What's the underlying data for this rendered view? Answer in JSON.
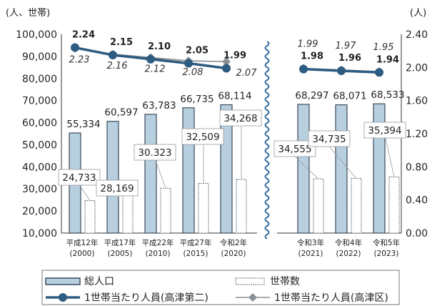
{
  "chart_data": {
    "type": "bar",
    "left_axis_unit": "(人、世帯)",
    "right_axis_unit": "(人)",
    "left_ticks": [
      "100,000",
      "90,000",
      "80,000",
      "70,000",
      "60,000",
      "50,000",
      "40,000",
      "30,000",
      "20,000",
      "10,000"
    ],
    "right_ticks": [
      "2.40",
      "2.00",
      "1.60",
      "1.20",
      "0.80",
      "0.40",
      "0.00"
    ],
    "ylim": [
      10000,
      100000
    ],
    "y2lim": [
      0,
      2.4
    ],
    "categories": [
      {
        "era": "平成12年",
        "year": "(2000)"
      },
      {
        "era": "平成17年",
        "year": "(2005)"
      },
      {
        "era": "平成22年",
        "year": "(2010)"
      },
      {
        "era": "平成27年",
        "year": "(2015)"
      },
      {
        "era": "令和2年",
        "year": "(2020)"
      },
      {
        "era": "令和3年",
        "year": "(2021)"
      },
      {
        "era": "令和4年",
        "year": "(2022)"
      },
      {
        "era": "令和5年",
        "year": "(2023)"
      }
    ],
    "series": [
      {
        "name": "総人口",
        "values": [
          55334,
          60597,
          63783,
          66735,
          68114,
          68297,
          68071,
          68533
        ],
        "labels": [
          "55,334",
          "60,597",
          "63,783",
          "66,735",
          "68,114",
          "68,297",
          "68,071",
          "68,533"
        ]
      },
      {
        "name": "世帯数",
        "values": [
          24733,
          28169,
          30323,
          32509,
          34268,
          34555,
          34735,
          35394
        ],
        "labels": [
          "24,733",
          "28,169",
          "30.323",
          "32,509",
          "34,268",
          "34,555",
          "34,735",
          "35,394"
        ]
      },
      {
        "name": "1世帯当たり人員(高津第二)",
        "values": [
          2.24,
          2.15,
          2.1,
          2.05,
          1.99,
          1.98,
          1.96,
          1.94
        ],
        "labels": [
          "2.24",
          "2.15",
          "2.10",
          "2.05",
          "1.99",
          "1.98",
          "1.96",
          "1.94"
        ]
      },
      {
        "name": "1世帯当たり人員(高津区)",
        "values": [
          2.23,
          2.16,
          2.12,
          2.08,
          2.07,
          1.99,
          1.97,
          1.95
        ],
        "labels": [
          "2.23",
          "2.16",
          "2.12",
          "2.08",
          "2.07",
          "1.99",
          "1.97",
          "1.95"
        ]
      }
    ],
    "colors": {
      "bar": "#b8cfe0",
      "bar_stroke": "#3a4a58",
      "line_main": "#2e5b80",
      "line_ward": "#8a8f94",
      "break": "#3a6fa0"
    },
    "legend_position": "bottom",
    "grid": false
  }
}
